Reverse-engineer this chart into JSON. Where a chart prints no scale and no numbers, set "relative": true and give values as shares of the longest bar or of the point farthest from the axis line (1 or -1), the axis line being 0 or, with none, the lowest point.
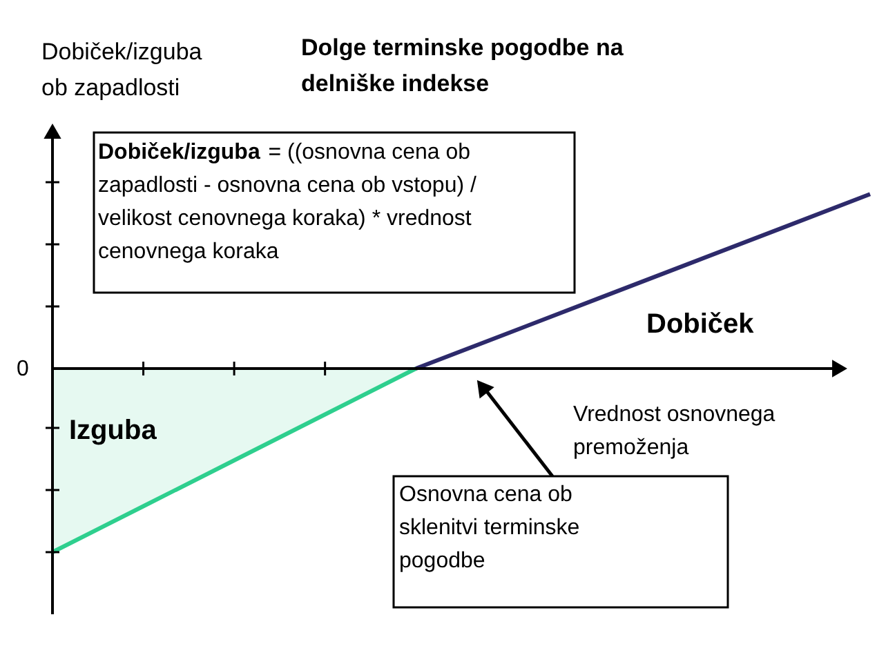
{
  "chart_data": {
    "type": "line",
    "relative": true,
    "title": "Dolge terminske pogodbe na delniške indekse",
    "ylabel": "Dobiček/izguba ob zapadlosti",
    "xlabel": "Vrednost osnovnega premoženja",
    "categories": [
      null,
      null,
      null,
      null,
      null,
      null,
      null,
      null,
      null,
      null
    ],
    "series": [
      {
        "type": "area",
        "color": "#2ecf8e",
        "values": [
          -1,
          -0.75,
          -0.5,
          -0.25,
          0,
          null,
          null,
          null,
          null,
          null
        ]
      },
      {
        "color": "#2d2a6b",
        "values": [
          null,
          null,
          null,
          null,
          0,
          0.19,
          0.38,
          0.57,
          0.76,
          0.95
        ]
      }
    ],
    "annotations": [
      "0",
      "Dobiček/izguba = ((osnovna cena ob zapadlosti - osnovna cena ob vstopu) / velikost cenovnega koraka) * vrednost cenovnega koraka",
      "Dobiček",
      "Izguba",
      "Osnovna cena ob sklenitvi terminske pogodbe"
    ]
  }
}
